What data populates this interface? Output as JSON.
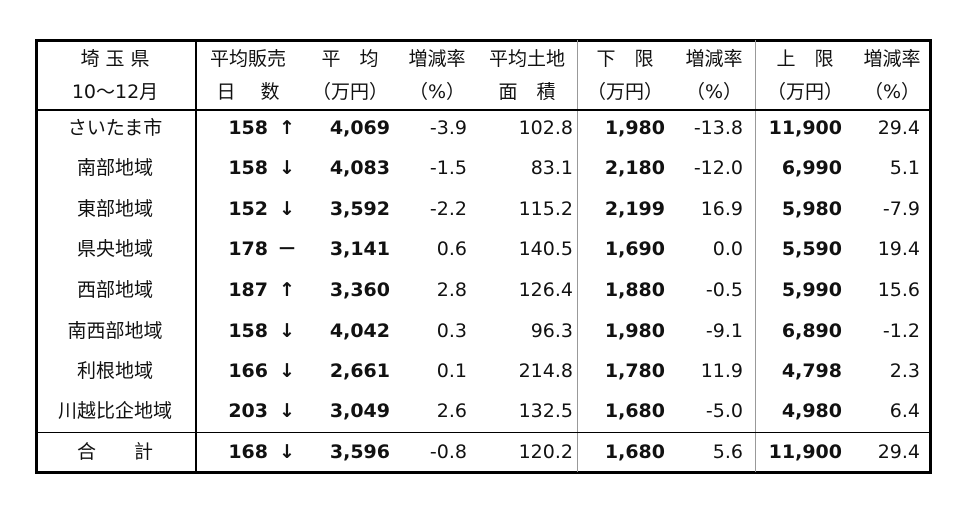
{
  "table": {
    "header": [
      [
        "埼 玉 県",
        "平均販売",
        "平　均",
        "増減率",
        "平均土地",
        "下　限",
        "増減率",
        "上　限",
        "増減率"
      ],
      [
        "10〜12月",
        "日　 数",
        "（万円）",
        "（%）",
        "面　積",
        "（万円）",
        "（%）",
        "（万円）",
        "（%）"
      ]
    ],
    "rows": [
      [
        "さいたま市",
        "158",
        "↑",
        "4,069",
        "-3.9",
        "102.8",
        "1,980",
        "-13.8",
        "11,900",
        "29.4"
      ],
      [
        "南部地域",
        "158",
        "↓",
        "4,083",
        "-1.5",
        "83.1",
        "2,180",
        "-12.0",
        "6,990",
        "5.1"
      ],
      [
        "東部地域",
        "152",
        "↓",
        "3,592",
        "-2.2",
        "115.2",
        "2,199",
        "16.9",
        "5,980",
        "-7.9"
      ],
      [
        "県央地域",
        "178",
        "－",
        "3,141",
        "0.6",
        "140.5",
        "1,690",
        "0.0",
        "5,590",
        "19.4"
      ],
      [
        "西部地域",
        "187",
        "↑",
        "3,360",
        "2.8",
        "126.4",
        "1,880",
        "-0.5",
        "5,990",
        "15.6"
      ],
      [
        "南西部地域",
        "158",
        "↓",
        "4,042",
        "0.3",
        "96.3",
        "1,980",
        "-9.1",
        "6,890",
        "-1.2"
      ],
      [
        "利根地域",
        "166",
        "↓",
        "2,661",
        "0.1",
        "214.8",
        "1,780",
        "11.9",
        "4,798",
        "2.3"
      ],
      [
        "川越比企地域",
        "203",
        "↓",
        "3,049",
        "2.6",
        "132.5",
        "1,680",
        "-5.0",
        "4,980",
        "6.4"
      ]
    ],
    "total": [
      "合　　計",
      "168",
      "↓",
      "3,596",
      "-0.8",
      "120.2",
      "1,680",
      "5.6",
      "11,900",
      "29.4"
    ]
  }
}
